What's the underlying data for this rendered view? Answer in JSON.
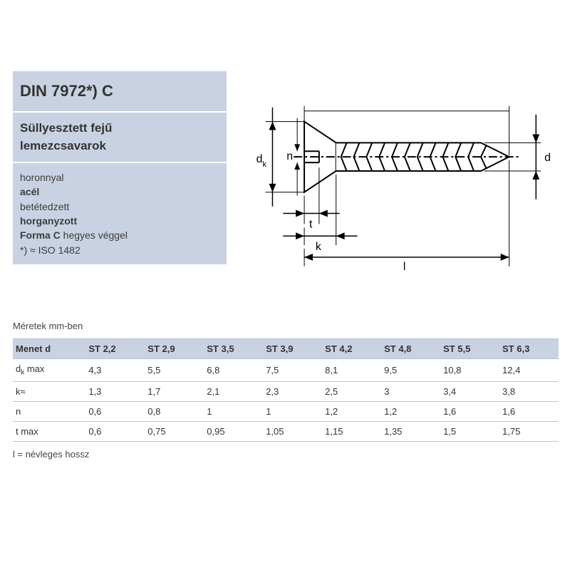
{
  "header": {
    "title": "DIN 7972*) C",
    "subtitle1": "Süllyesztett fejű",
    "subtitle2": "lemezcsavarok",
    "spec_lines": [
      {
        "text": "horonnyal",
        "bold": false
      },
      {
        "text": "acél",
        "bold": true
      },
      {
        "text": "betétedzett",
        "bold": false
      },
      {
        "text": "horganyzott",
        "bold": true
      },
      {
        "text_html": "<span class='b'>Forma C</span> hegyes véggel"
      },
      {
        "text": "*) ≈ ISO 1482",
        "bold": false
      }
    ]
  },
  "diagram": {
    "labels": {
      "dk": "d",
      "dk_sub": "k",
      "n": "n",
      "t": "t",
      "k": "k",
      "l": "l",
      "d": "d"
    },
    "style": {
      "stroke": "#000000",
      "stroke_width": 2,
      "font_family": "Arial",
      "label_fontsize": 16
    }
  },
  "table": {
    "units_caption": "Méretek mm-ben",
    "first_col_header": "Menet d",
    "columns": [
      "ST 2,2",
      "ST 2,9",
      "ST 3,5",
      "ST 3,9",
      "ST 4,2",
      "ST 4,8",
      "ST 5,5",
      "ST 6,3"
    ],
    "rows": [
      {
        "label_html": "d<span class='sub-k'>k</span> max",
        "values": [
          "4,3",
          "5,5",
          "6,8",
          "7,5",
          "8,1",
          "9,5",
          "10,8",
          "12,4"
        ]
      },
      {
        "label_html": "k≈",
        "values": [
          "1,3",
          "1,7",
          "2,1",
          "2,3",
          "2,5",
          "3",
          "3,4",
          "3,8"
        ]
      },
      {
        "label_html": "n",
        "values": [
          "0,6",
          "0,8",
          "1",
          "1",
          "1,2",
          "1,2",
          "1,6",
          "1,6"
        ]
      },
      {
        "label_html": "t max",
        "values": [
          "0,6",
          "0,75",
          "0,95",
          "1,05",
          "1,15",
          "1,35",
          "1,5",
          "1,75"
        ]
      }
    ],
    "footnote": "l = névleges hossz",
    "style": {
      "header_bg": "#c9d2e2",
      "border_color": "#b8c3d6",
      "font_size": 13
    }
  }
}
